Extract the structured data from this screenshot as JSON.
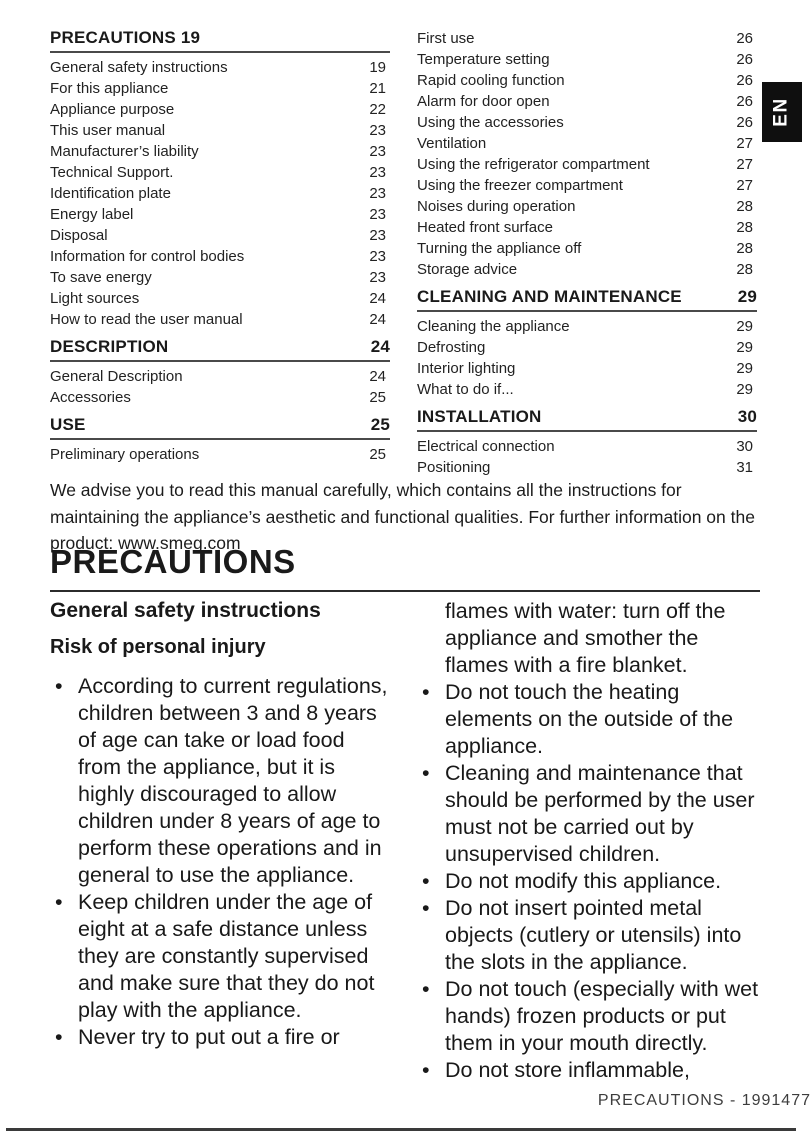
{
  "page": {
    "title": "PRECAUTIONS",
    "language_tab": "EN",
    "footer": "PRECAUTIONS - 1991477",
    "advisory": "We advise you to read this manual carefully, which contains all the instructions for maintaining the appliance’s aesthetic and functional qualities. For further information on the product: www.smeg.com"
  },
  "toc": {
    "columns": [
      {
        "blocks": [
          {
            "type": "section",
            "label": "PRECAUTIONS 19",
            "page": ""
          },
          {
            "type": "entry",
            "label": "General safety instructions",
            "page": "19"
          },
          {
            "type": "entry",
            "label": "For this appliance",
            "page": "21"
          },
          {
            "type": "entry",
            "label": "Appliance purpose",
            "page": "22"
          },
          {
            "type": "entry",
            "label": "This user manual",
            "page": "23"
          },
          {
            "type": "entry",
            "label": "Manufacturer’s liability",
            "page": "23"
          },
          {
            "type": "entry",
            "label": "Technical Support.",
            "page": "23"
          },
          {
            "type": "entry",
            "label": "Identification plate",
            "page": "23"
          },
          {
            "type": "entry",
            "label": "Energy label",
            "page": "23"
          },
          {
            "type": "entry",
            "label": "Disposal",
            "page": "23"
          },
          {
            "type": "entry",
            "label": "Information for control bodies",
            "page": "23"
          },
          {
            "type": "entry",
            "label": "To save energy",
            "page": "23"
          },
          {
            "type": "entry",
            "label": "Light sources",
            "page": "24"
          },
          {
            "type": "entry",
            "label": "How to read the user manual",
            "page": "24"
          },
          {
            "type": "section",
            "label": "DESCRIPTION",
            "page": "24"
          },
          {
            "type": "entry",
            "label": "General Description",
            "page": "24"
          },
          {
            "type": "entry",
            "label": "Accessories",
            "page": "25"
          },
          {
            "type": "section",
            "label": "USE",
            "page": "25"
          },
          {
            "type": "entry",
            "label": "Preliminary operations",
            "page": "25"
          }
        ]
      },
      {
        "blocks": [
          {
            "type": "entry",
            "label": "First use",
            "page": "26"
          },
          {
            "type": "entry",
            "label": "Temperature setting",
            "page": "26"
          },
          {
            "type": "entry",
            "label": "Rapid cooling function",
            "page": "26"
          },
          {
            "type": "entry",
            "label": "Alarm for door open",
            "page": "26"
          },
          {
            "type": "entry",
            "label": "Using the accessories",
            "page": "26"
          },
          {
            "type": "entry",
            "label": "Ventilation",
            "page": "27"
          },
          {
            "type": "entry",
            "label": "Using the refrigerator compartment",
            "page": "27"
          },
          {
            "type": "entry",
            "label": "Using the freezer compartment",
            "page": "27"
          },
          {
            "type": "entry",
            "label": "Noises during operation",
            "page": "28"
          },
          {
            "type": "entry",
            "label": "Heated front surface",
            "page": "28"
          },
          {
            "type": "entry",
            "label": "Turning the appliance off",
            "page": "28"
          },
          {
            "type": "entry",
            "label": "Storage advice",
            "page": "28"
          },
          {
            "type": "section",
            "label": "CLEANING AND MAINTENANCE",
            "page": "29"
          },
          {
            "type": "entry",
            "label": "Cleaning the appliance",
            "page": "29"
          },
          {
            "type": "entry",
            "label": "Defrosting",
            "page": "29"
          },
          {
            "type": "entry",
            "label": "Interior lighting",
            "page": "29"
          },
          {
            "type": "entry",
            "label": "What to do if...",
            "page": "29"
          },
          {
            "type": "section",
            "label": "INSTALLATION",
            "page": "30"
          },
          {
            "type": "entry",
            "label": "Electrical connection",
            "page": "30"
          },
          {
            "type": "entry",
            "label": "Positioning",
            "page": "31"
          }
        ]
      }
    ]
  },
  "body": {
    "left": {
      "heading": "General safety instructions",
      "subheading": "Risk of personal injury",
      "bullets": [
        "According to current regulations, children between 3 and 8 years of age can take or load food from the appliance, but it is highly discouraged to allow children under 8 years of age to perform these operations and in general to use the appliance.",
        "Keep children under the age of eight at a safe distance unless they are constantly supervised and make sure that they do not play with the appliance.",
        "Never try to put out a fire or"
      ]
    },
    "right": {
      "continuation": "flames with water: turn off the appliance and smother the flames with a fire blanket.",
      "bullets": [
        "Do not touch the heating elements on the outside of the appliance.",
        "Cleaning and maintenance that should be performed by the user must not be carried out by unsupervised children.",
        "Do not modify this appliance.",
        "Do not insert pointed metal objects (cutlery or utensils) into the slots in the appliance.",
        "Do not touch (especially with wet hands) frozen products or put them in your mouth directly.",
        "Do not store inflammable,"
      ]
    }
  },
  "bullet_marker": "•"
}
